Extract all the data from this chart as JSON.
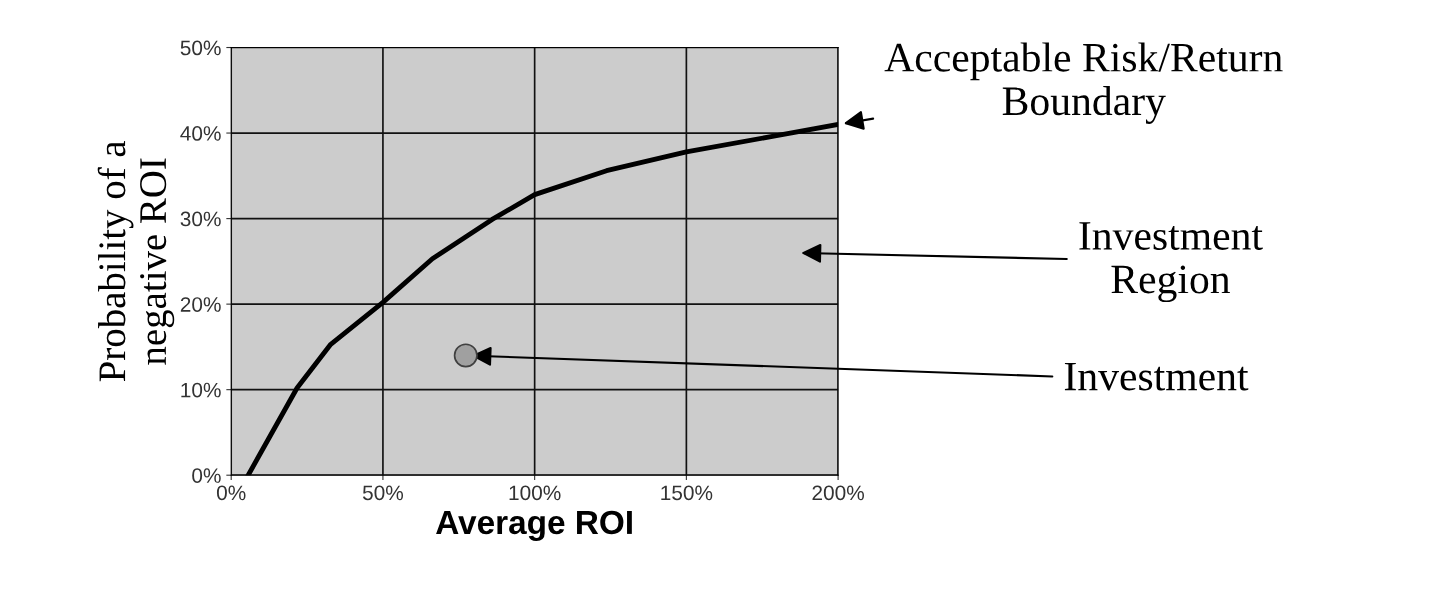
{
  "chart_data": {
    "type": "line",
    "xlabel": "Average ROI",
    "ylabel": "Probability of a\nnegative ROI",
    "xlim": [
      0,
      200
    ],
    "ylim": [
      0,
      50
    ],
    "xticks": [
      {
        "value": 0,
        "label": "0%"
      },
      {
        "value": 50,
        "label": "50%"
      },
      {
        "value": 100,
        "label": "100%"
      },
      {
        "value": 150,
        "label": "150%"
      },
      {
        "value": 200,
        "label": "200%"
      }
    ],
    "yticks": [
      {
        "value": 0,
        "label": "0%"
      },
      {
        "value": 10,
        "label": "10%"
      },
      {
        "value": 20,
        "label": "20%"
      },
      {
        "value": 30,
        "label": "30%"
      },
      {
        "value": 40,
        "label": "40%"
      },
      {
        "value": 50,
        "label": "50%"
      }
    ],
    "grid": true,
    "marker": "none",
    "line_style": "solid",
    "series": [
      {
        "color": "#000000",
        "x": [
          5.6,
          21.7,
          32.8,
          50,
          66.3,
          86,
          100,
          123.7,
          150,
          179.7,
          200
        ],
        "values": [
          0,
          10.2,
          15.3,
          20.2,
          25.3,
          29.9,
          32.8,
          35.6,
          37.8,
          39.7,
          41.0
        ]
      },
      {
        "type": "scatter",
        "color": "#a0a0a0",
        "marker": "circle",
        "x": [
          77.3
        ],
        "values": [
          14.0
        ]
      }
    ],
    "annotations": [
      {
        "text": "Acceptable Risk/Return\nBoundary",
        "x": 200,
        "y": 41.0
      },
      "Investment\nRegion",
      {
        "text": "Investment",
        "x": 77.3,
        "y": 14.0
      }
    ]
  }
}
